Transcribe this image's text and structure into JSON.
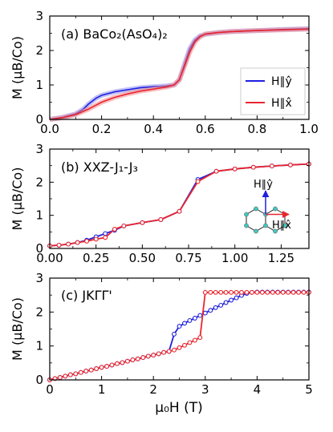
{
  "figure": {
    "xlabel": "μ₀H (T)",
    "colors": {
      "y": "#1f1fdf",
      "x": "#e8262e",
      "y_pale": "#8c8cf0",
      "x_pale": "#f28a8e",
      "lattice": "#40c8c0"
    }
  },
  "chart_data": [
    {
      "type": "line",
      "panel_label": "(a) BaCo₂(AsO₄)₂",
      "ylabel": "M (μB/Co)",
      "xlim": [
        0.0,
        1.0
      ],
      "ylim": [
        0,
        3
      ],
      "xticks": [
        "0.0",
        "0.2",
        "0.4",
        "0.6",
        "0.8",
        "1.0"
      ],
      "yticks": [
        "0",
        "1",
        "2",
        "3"
      ],
      "legend": {
        "placement": "right",
        "entries": [
          "H∥ŷ",
          "H∥x̂"
        ]
      },
      "series": [
        {
          "name": "H∥ŷ",
          "color": "#1f1fdf",
          "x": [
            0,
            0.05,
            0.1,
            0.13,
            0.15,
            0.18,
            0.2,
            0.25,
            0.3,
            0.35,
            0.4,
            0.45,
            0.48,
            0.5,
            0.52,
            0.54,
            0.56,
            0.58,
            0.6,
            0.65,
            0.7,
            0.8,
            0.9,
            1.0
          ],
          "y": [
            0,
            0.06,
            0.16,
            0.3,
            0.45,
            0.62,
            0.7,
            0.8,
            0.86,
            0.92,
            0.95,
            0.97,
            1.0,
            1.15,
            1.6,
            2.05,
            2.3,
            2.42,
            2.47,
            2.52,
            2.55,
            2.58,
            2.61,
            2.63
          ]
        },
        {
          "name": "H∥x̂",
          "color": "#e8262e",
          "x": [
            0,
            0.05,
            0.1,
            0.15,
            0.2,
            0.25,
            0.3,
            0.35,
            0.4,
            0.45,
            0.48,
            0.5,
            0.52,
            0.54,
            0.56,
            0.58,
            0.6,
            0.65,
            0.7,
            0.8,
            0.9,
            1.0
          ],
          "y": [
            0,
            0.05,
            0.14,
            0.3,
            0.5,
            0.64,
            0.74,
            0.82,
            0.88,
            0.94,
            1.0,
            1.15,
            1.55,
            1.95,
            2.25,
            2.4,
            2.48,
            2.52,
            2.55,
            2.58,
            2.6,
            2.62
          ]
        }
      ]
    },
    {
      "type": "line",
      "panel_label": "(b) XXZ-J₁-J₃",
      "ylabel": "M (μB/Co)",
      "xlim": [
        0.0,
        1.4
      ],
      "ylim": [
        0,
        3
      ],
      "xticks": [
        "0.00",
        "0.25",
        "0.50",
        "0.75",
        "1.00",
        "1.25"
      ],
      "yticks": [
        "0",
        "1",
        "2",
        "3"
      ],
      "inset_labels": [
        "H∥ŷ",
        "H∥x̂"
      ],
      "series": [
        {
          "name": "H∥ŷ",
          "color": "#1f1fdf",
          "x": [
            0,
            0.05,
            0.1,
            0.15,
            0.2,
            0.25,
            0.3,
            0.35,
            0.4,
            0.5,
            0.6,
            0.7,
            0.8,
            0.9,
            1.0,
            1.1,
            1.2,
            1.3,
            1.4
          ],
          "y": [
            0.08,
            0.1,
            0.13,
            0.18,
            0.25,
            0.35,
            0.45,
            0.55,
            0.68,
            0.78,
            0.87,
            1.12,
            2.08,
            2.33,
            2.4,
            2.45,
            2.49,
            2.52,
            2.55
          ]
        },
        {
          "name": "H∥x̂",
          "color": "#e8262e",
          "x": [
            0,
            0.05,
            0.1,
            0.15,
            0.2,
            0.25,
            0.3,
            0.35,
            0.4,
            0.5,
            0.6,
            0.7,
            0.8,
            0.9,
            1.0,
            1.1,
            1.2,
            1.3,
            1.4
          ],
          "y": [
            0.08,
            0.1,
            0.13,
            0.18,
            0.22,
            0.28,
            0.33,
            0.58,
            0.68,
            0.78,
            0.87,
            1.12,
            2.02,
            2.33,
            2.4,
            2.45,
            2.49,
            2.52,
            2.55
          ]
        }
      ]
    },
    {
      "type": "line",
      "panel_label": "(c) JKΓΓ'",
      "ylabel": "M (μB/Co)",
      "xlim": [
        0,
        5
      ],
      "ylim": [
        0,
        3
      ],
      "xticks": [
        "0",
        "1",
        "2",
        "3",
        "4",
        "5"
      ],
      "yticks": [
        "0",
        "1",
        "2",
        "3"
      ],
      "series": [
        {
          "name": "H∥ŷ",
          "color": "#1f1fdf",
          "x": [
            0,
            0.1,
            0.2,
            0.3,
            0.4,
            0.5,
            0.6,
            0.7,
            0.8,
            0.9,
            1.0,
            1.1,
            1.2,
            1.3,
            1.4,
            1.5,
            1.6,
            1.7,
            1.8,
            1.9,
            2.0,
            2.1,
            2.2,
            2.3,
            2.4,
            2.5,
            2.6,
            2.7,
            2.8,
            2.9,
            3.0,
            3.1,
            3.2,
            3.3,
            3.4,
            3.5,
            3.6,
            3.7,
            3.8,
            3.9,
            4.0,
            4.1,
            4.2,
            4.3,
            4.4,
            4.5,
            4.6,
            4.7,
            4.8,
            4.9,
            5.0
          ],
          "y": [
            0,
            0.04,
            0.07,
            0.11,
            0.15,
            0.18,
            0.22,
            0.26,
            0.29,
            0.33,
            0.37,
            0.4,
            0.44,
            0.48,
            0.51,
            0.55,
            0.59,
            0.62,
            0.66,
            0.7,
            0.73,
            0.77,
            0.81,
            0.84,
            1.35,
            1.58,
            1.67,
            1.75,
            1.82,
            1.9,
            1.97,
            2.05,
            2.13,
            2.2,
            2.28,
            2.35,
            2.42,
            2.49,
            2.55,
            2.58,
            2.59,
            2.59,
            2.59,
            2.59,
            2.59,
            2.59,
            2.59,
            2.59,
            2.59,
            2.59,
            2.59
          ]
        },
        {
          "name": "H∥x̂",
          "color": "#e8262e",
          "x": [
            0,
            0.1,
            0.2,
            0.3,
            0.4,
            0.5,
            0.6,
            0.7,
            0.8,
            0.9,
            1.0,
            1.1,
            1.2,
            1.3,
            1.4,
            1.5,
            1.6,
            1.7,
            1.8,
            1.9,
            2.0,
            2.1,
            2.2,
            2.3,
            2.4,
            2.5,
            2.6,
            2.7,
            2.8,
            2.9,
            3.0,
            3.1,
            3.2,
            3.3,
            3.4,
            3.5,
            3.6,
            3.7,
            3.8,
            3.9,
            4.0,
            4.1,
            4.2,
            4.3,
            4.4,
            4.5,
            4.6,
            4.7,
            4.8,
            4.9,
            5.0
          ],
          "y": [
            0,
            0.04,
            0.07,
            0.11,
            0.15,
            0.18,
            0.22,
            0.26,
            0.29,
            0.33,
            0.37,
            0.4,
            0.44,
            0.48,
            0.51,
            0.55,
            0.59,
            0.62,
            0.66,
            0.7,
            0.73,
            0.77,
            0.81,
            0.84,
            0.88,
            0.95,
            1.02,
            1.1,
            1.17,
            1.25,
            2.58,
            2.58,
            2.58,
            2.58,
            2.58,
            2.58,
            2.58,
            2.58,
            2.58,
            2.58,
            2.58,
            2.58,
            2.58,
            2.58,
            2.58,
            2.58,
            2.58,
            2.58,
            2.58,
            2.58,
            2.58
          ]
        }
      ]
    }
  ]
}
